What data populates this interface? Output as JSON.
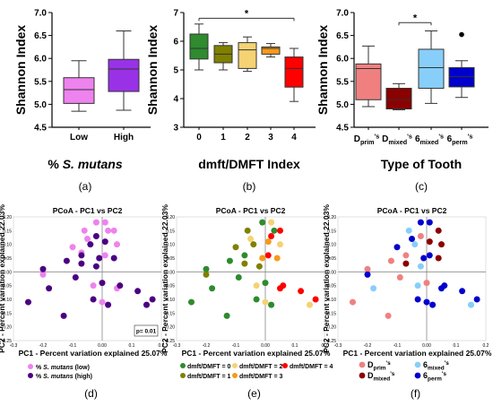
{
  "figure": {
    "panel_labels": [
      "(a)",
      "(b)",
      "(c)",
      "(d)",
      "(e)",
      "(f)"
    ]
  },
  "chart_data": [
    {
      "panel": "(a)",
      "type": "box",
      "ylabel": "Shannon Index",
      "xlabel": "% S. mutans",
      "ylim": [
        4.5,
        7.0
      ],
      "yticks": [
        "4.5",
        "5.0",
        "5.5",
        "6.0",
        "6.5",
        "7.0"
      ],
      "categories": [
        "Low",
        "High"
      ],
      "boxes": [
        {
          "label": "Low",
          "color": "#ee82ee",
          "min": 4.85,
          "q1": 5.02,
          "median": 5.32,
          "q3": 5.58,
          "max": 5.95
        },
        {
          "label": "High",
          "color": "#9932e6",
          "min": 4.87,
          "q1": 5.28,
          "median": 5.77,
          "q3": 5.98,
          "max": 6.6
        }
      ]
    },
    {
      "panel": "(b)",
      "type": "box",
      "ylabel": "Shannon Index",
      "xlabel": "dmft/DMFT Index",
      "ylim": [
        3,
        7
      ],
      "yticks": [
        "3",
        "4",
        "5",
        "6",
        "7"
      ],
      "categories": [
        "0",
        "1",
        "2",
        "3",
        "4"
      ],
      "significance": {
        "from": 0,
        "to": 4,
        "label": "*",
        "y": 6.8
      },
      "boxes": [
        {
          "label": "0",
          "color": "#2e8b2e",
          "min": 5.0,
          "q1": 5.38,
          "median": 5.75,
          "q3": 6.25,
          "max": 6.6
        },
        {
          "label": "1",
          "color": "#808000",
          "min": 5.0,
          "q1": 5.25,
          "median": 5.55,
          "q3": 5.85,
          "max": 5.95
        },
        {
          "label": "2",
          "color": "#f5d273",
          "min": 4.95,
          "q1": 5.05,
          "median": 5.7,
          "q3": 5.95,
          "max": 6.15
        },
        {
          "label": "3",
          "color": "#f59a1a",
          "min": 5.45,
          "q1": 5.55,
          "median": 5.75,
          "q3": 5.8,
          "max": 5.92
        },
        {
          "label": "4",
          "color": "#ff0000",
          "min": 3.9,
          "q1": 4.4,
          "median": 5.05,
          "q3": 5.45,
          "max": 5.75
        }
      ]
    },
    {
      "panel": "(c)",
      "type": "box",
      "ylabel": "Shannon Index",
      "xlabel": "Type of Tooth",
      "ylim": [
        4.5,
        7.0
      ],
      "yticks": [
        "4.5",
        "5.0",
        "5.5",
        "6.0",
        "6.5",
        "7.0"
      ],
      "categories": [
        {
          "main": "D",
          "sub": "prim",
          "sup": "'s"
        },
        {
          "main": "D",
          "sub": "mixed",
          "sup": "'s"
        },
        {
          "main": "6",
          "sub": "mixed",
          "sup": "'s"
        },
        {
          "main": "6",
          "sub": "perm",
          "sup": "'s"
        }
      ],
      "significance": {
        "from": 1,
        "to": 2,
        "label": "*",
        "y": 6.78
      },
      "boxes": [
        {
          "color": "#f08080",
          "min": 4.95,
          "q1": 5.1,
          "median": 5.78,
          "q3": 5.88,
          "max": 6.27
        },
        {
          "color": "#8b0000",
          "min": 4.88,
          "q1": 4.9,
          "median": 5.1,
          "q3": 5.35,
          "max": 5.45
        },
        {
          "color": "#87cefa",
          "min": 5.02,
          "q1": 5.35,
          "median": 5.8,
          "q3": 6.2,
          "max": 6.6
        },
        {
          "color": "#0000cd",
          "min": 5.15,
          "q1": 5.38,
          "median": 5.6,
          "q3": 5.8,
          "max": 5.95,
          "outliers": [
            6.52
          ]
        }
      ]
    },
    {
      "panel": "(d)",
      "type": "scatter",
      "title": "PCoA - PC1 vs PC2",
      "xlabel": "PC1 - Percent variation explained 25.07%",
      "ylabel": "PC2 - Percent variation explained 22.03%",
      "xlim": [
        -0.3,
        0.2
      ],
      "ylim": [
        -0.25,
        0.2
      ],
      "xticks": [
        "-0.3",
        "-0.2",
        "-0.1",
        "0.00",
        "0.1",
        "0.2"
      ],
      "yticks": [
        "-0.25",
        "-0.20",
        "-0.15",
        "-0.10",
        "-0.05",
        "0.00",
        "0.05",
        "0.10",
        "0.15",
        "0.20"
      ],
      "annotation": "p= 0.01",
      "series": [
        {
          "name": "% S. mutans (low)",
          "color": "#ee82ee",
          "points": [
            [
              -0.02,
              0.18
            ],
            [
              0.01,
              0.18
            ],
            [
              -0.06,
              0.15
            ],
            [
              0.02,
              0.15
            ],
            [
              0.04,
              0.15
            ],
            [
              -0.05,
              0.12
            ],
            [
              0.05,
              0.1
            ],
            [
              -0.1,
              0.09
            ],
            [
              -0.07,
              0.07
            ],
            [
              0.01,
              0.06
            ],
            [
              -0.2,
              -0.01
            ],
            [
              -0.03,
              -0.05
            ],
            [
              0.05,
              -0.06
            ],
            [
              0.0,
              -0.11
            ]
          ]
        },
        {
          "name": "% S. mutans (high)",
          "color": "#4b0082",
          "points": [
            [
              -0.02,
              0.13
            ],
            [
              0.01,
              0.11
            ],
            [
              -0.04,
              0.1
            ],
            [
              -0.07,
              0.06
            ],
            [
              -0.01,
              0.05
            ],
            [
              0.04,
              0.05
            ],
            [
              -0.12,
              0.04
            ],
            [
              -0.07,
              0.03
            ],
            [
              -0.02,
              0.02
            ],
            [
              -0.2,
              0.01
            ],
            [
              -0.09,
              -0.02
            ],
            [
              0.0,
              -0.04
            ],
            [
              0.06,
              -0.05
            ],
            [
              -0.18,
              -0.06
            ],
            [
              0.12,
              -0.07
            ],
            [
              -0.03,
              -0.1
            ],
            [
              0.15,
              -0.12
            ],
            [
              0.17,
              -0.1
            ],
            [
              -0.25,
              -0.11
            ],
            [
              0.02,
              -0.12
            ],
            [
              -0.13,
              -0.16
            ]
          ]
        }
      ]
    },
    {
      "panel": "(e)",
      "type": "scatter",
      "title": "PCoA - PC1 vs PC2",
      "xlabel": "PC1 - Percent variation explained 25.07%",
      "ylabel": "PC2 - Percent variation explained 22.03%",
      "xlim": [
        -0.3,
        0.2
      ],
      "ylim": [
        -0.25,
        0.2
      ],
      "xticks": [
        "-0.3",
        "-0.2",
        "-0.1",
        "0.00",
        "0.1",
        "0.2"
      ],
      "yticks": [
        "-0.25",
        "-0.20",
        "-0.15",
        "-0.10",
        "-0.05",
        "0.00",
        "0.05",
        "0.10",
        "0.15",
        "0.20"
      ],
      "series": [
        {
          "name": "dmft/DMFT = 0",
          "color": "#2e8b2e",
          "points": [
            [
              -0.01,
              0.18
            ],
            [
              0.03,
              0.15
            ],
            [
              -0.07,
              0.06
            ],
            [
              -0.12,
              0.04
            ],
            [
              -0.2,
              0.01
            ],
            [
              -0.09,
              -0.02
            ],
            [
              -0.18,
              -0.06
            ],
            [
              -0.25,
              -0.11
            ],
            [
              -0.13,
              -0.16
            ],
            [
              0.0,
              -0.04
            ],
            [
              0.02,
              -0.12
            ],
            [
              -0.03,
              -0.1
            ]
          ]
        },
        {
          "name": "dmft/DMFT = 1",
          "color": "#808000",
          "points": [
            [
              -0.06,
              0.15
            ],
            [
              -0.1,
              0.09
            ],
            [
              -0.04,
              0.1
            ],
            [
              -0.07,
              0.03
            ],
            [
              -0.02,
              0.02
            ],
            [
              -0.2,
              -0.01
            ]
          ]
        },
        {
          "name": "dmft/DMFT = 2",
          "color": "#f5d273",
          "points": [
            [
              0.02,
              0.18
            ],
            [
              -0.05,
              0.12
            ],
            [
              0.05,
              0.1
            ],
            [
              -0.03,
              -0.05
            ],
            [
              0.0,
              -0.11
            ],
            [
              0.15,
              -0.12
            ]
          ]
        },
        {
          "name": "dmft/DMFT = 3",
          "color": "#f59a1a",
          "points": [
            [
              0.01,
              0.11
            ],
            [
              0.04,
              0.05
            ],
            [
              -0.01,
              0.05
            ]
          ]
        },
        {
          "name": "dmft/DMFT = 4",
          "color": "#ff0000",
          "points": [
            [
              0.02,
              0.13
            ],
            [
              0.05,
              0.15
            ],
            [
              0.01,
              0.06
            ],
            [
              0.06,
              -0.05
            ],
            [
              0.05,
              -0.06
            ],
            [
              0.12,
              -0.07
            ],
            [
              0.17,
              -0.1
            ]
          ]
        }
      ]
    },
    {
      "panel": "(f)",
      "type": "scatter",
      "title": "PCoA - PC1 vs PC2",
      "xlabel": "PC1 - Percent variation explained 25.07%",
      "ylabel": "PC2 - Percent variation explained 22.03%",
      "xlim": [
        -0.3,
        0.2
      ],
      "ylim": [
        -0.25,
        0.2
      ],
      "xticks": [
        "-0.3",
        "-0.2",
        "-0.1",
        "0.00",
        "0.1",
        "0.2"
      ],
      "yticks": [
        "-0.25",
        "-0.20",
        "-0.15",
        "-0.10",
        "-0.05",
        "0.00",
        "0.05",
        "0.10",
        "0.15",
        "0.20"
      ],
      "series": [
        {
          "name": {
            "main": "D",
            "sub": "prim",
            "sup": "'s"
          },
          "color": "#f08080",
          "points": [
            [
              -0.02,
              0.13
            ],
            [
              -0.07,
              0.06
            ],
            [
              -0.12,
              0.04
            ],
            [
              -0.09,
              -0.02
            ],
            [
              -0.2,
              0.01
            ],
            [
              -0.25,
              -0.11
            ],
            [
              0.0,
              -0.04
            ],
            [
              -0.13,
              -0.16
            ]
          ]
        },
        {
          "name": {
            "main": "D",
            "sub": "mixed",
            "sup": "'s"
          },
          "color": "#8b0000",
          "points": [
            [
              0.04,
              0.15
            ],
            [
              0.01,
              0.11
            ],
            [
              0.05,
              0.1
            ],
            [
              0.04,
              0.05
            ],
            [
              -0.07,
              0.03
            ]
          ]
        },
        {
          "name": {
            "main": "6",
            "sub": "mixed",
            "sup": "'s"
          },
          "color": "#87cefa",
          "points": [
            [
              -0.06,
              0.15
            ],
            [
              -0.04,
              0.1
            ],
            [
              -0.18,
              -0.06
            ],
            [
              -0.03,
              -0.05
            ],
            [
              0.15,
              -0.12
            ],
            [
              -0.02,
              0.02
            ]
          ]
        },
        {
          "name": {
            "main": "6",
            "sub": "perm",
            "sup": "'s"
          },
          "color": "#0000cd",
          "points": [
            [
              -0.02,
              0.18
            ],
            [
              0.01,
              0.18
            ],
            [
              -0.1,
              0.09
            ],
            [
              -0.05,
              0.12
            ],
            [
              -0.01,
              0.05
            ],
            [
              0.01,
              0.06
            ],
            [
              0.06,
              -0.05
            ],
            [
              0.12,
              -0.07
            ],
            [
              0.17,
              -0.1
            ],
            [
              0.02,
              -0.12
            ],
            [
              0.0,
              -0.11
            ],
            [
              -0.2,
              -0.01
            ],
            [
              -0.03,
              -0.1
            ],
            [
              0.05,
              -0.06
            ]
          ]
        }
      ]
    }
  ]
}
